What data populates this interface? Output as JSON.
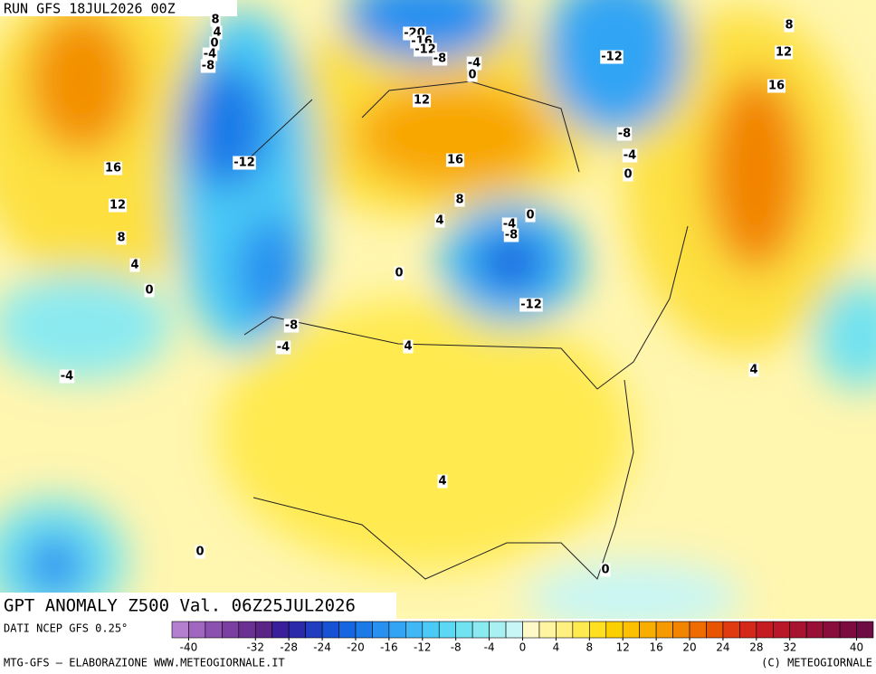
{
  "header": {
    "run": "RUN GFS 18JUL2026 00Z"
  },
  "map": {
    "title": "GPT ANOMALY Z500 Val. 06Z25JUL2026",
    "contour_labels": [
      8,
      4,
      0,
      -4,
      -8,
      -20,
      -16,
      -12,
      -8,
      -4,
      0,
      -12,
      8,
      12,
      16,
      12,
      -8,
      -4,
      0,
      16,
      -12,
      16,
      8,
      4,
      -4,
      0,
      -8,
      12,
      8,
      4,
      0,
      0,
      -12,
      -8,
      -4,
      4,
      -4,
      4,
      4,
      0,
      0
    ]
  },
  "colorbar": {
    "source": "DATI NCEP GFS 0.25°",
    "lim": [
      -42,
      42
    ],
    "ticks": [
      -40,
      -32,
      -28,
      -24,
      -20,
      -16,
      -12,
      -8,
      -4,
      0,
      4,
      8,
      12,
      16,
      20,
      24,
      28,
      32,
      40
    ],
    "colors": [
      "#b57fd0",
      "#a066c0",
      "#8c50b0",
      "#7a3fa0",
      "#6a3092",
      "#5a2585",
      "#3a1f9a",
      "#2a2aaa",
      "#1f3ec0",
      "#1852d4",
      "#1566e0",
      "#1a7ae8",
      "#2890f0",
      "#33a4f4",
      "#40b8f6",
      "#4ccaf6",
      "#5ad8f4",
      "#70e2f0",
      "#8aeaf0",
      "#a8f0f2",
      "#c8f6f6",
      "#fff8c8",
      "#fff4a0",
      "#fff080",
      "#ffea50",
      "#fee020",
      "#fcd000",
      "#fbc000",
      "#f8ae00",
      "#f59a00",
      "#f28400",
      "#ee6c00",
      "#e85400",
      "#e03a10",
      "#d42818",
      "#c41c20",
      "#b81828",
      "#a81430",
      "#981038",
      "#8a0e3c",
      "#7c0c40",
      "#6e0a44"
    ]
  },
  "footer": {
    "left": "MTG-GFS — ELABORAZIONE WWW.METEOGIORNALE.IT",
    "right": "(C) METEOGIORNALE"
  }
}
